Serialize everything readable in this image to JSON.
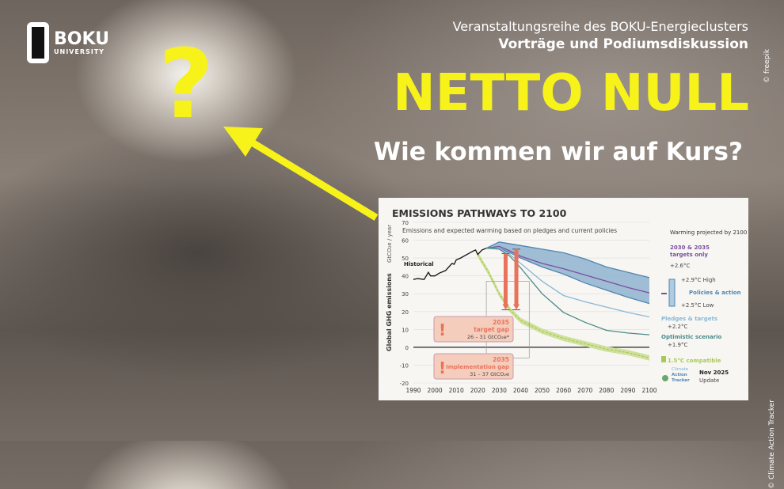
{
  "logo": {
    "name": "BOKU",
    "sub": "UNIVERSITY"
  },
  "question_mark": "?",
  "header": {
    "series": "Veranstaltungsreihe des BOKU-Energieclusters",
    "format": "Vorträge und Podiumsdiskussion",
    "credit": "© freepik"
  },
  "title": "NETTO NULL",
  "tagline": "Wie kommen wir auf Kurs?",
  "chart_credit": "© Climate Action Tracker",
  "colors": {
    "accent_yellow": "#f7f21a",
    "policies": "#4f86b0",
    "targets": "#7b4fa0",
    "pledges": "#8ab8d6",
    "optimistic": "#4a8a8a",
    "compatible": "#a8c85a",
    "gap": "#e8735a"
  },
  "chart_data": {
    "type": "line",
    "title": "EMISSIONS PATHWAYS TO 2100",
    "subtitle": "Emissions and expected warming based on pledges and current policies",
    "ylabel": "Global GHG emissions",
    "yunit": "GtCO₂e / year",
    "xlim": [
      1990,
      2100
    ],
    "ylim": [
      -20,
      70
    ],
    "xticks": [
      "1990",
      "2000",
      "2010",
      "2020",
      "2030",
      "2040",
      "2050",
      "2060",
      "2070",
      "2080",
      "2090",
      "2100"
    ],
    "yticks": [
      "70",
      "60",
      "50",
      "40",
      "30",
      "20",
      "10",
      "0",
      "-10",
      "-20"
    ],
    "grid": true,
    "series": [
      {
        "name": "Historical",
        "x": [
          1990,
          1992,
          1995,
          1997,
          1998,
          2000,
          2002,
          2005,
          2008,
          2009,
          2010,
          2012,
          2015,
          2018,
          2019,
          2020,
          2022,
          2024
        ],
        "y": [
          38,
          38.5,
          38,
          42,
          40,
          40,
          41.5,
          43,
          47,
          46.5,
          49,
          50,
          52,
          54,
          54.5,
          52,
          54.5,
          55.5
        ]
      },
      {
        "name": "Policies & action High",
        "x": [
          2024,
          2030,
          2035,
          2040,
          2050,
          2060,
          2070,
          2080,
          2090,
          2100
        ],
        "y": [
          55.5,
          59,
          58,
          57,
          55,
          53,
          49.5,
          45,
          42,
          39
        ]
      },
      {
        "name": "Policies & action Low",
        "x": [
          2024,
          2030,
          2035,
          2040,
          2050,
          2060,
          2070,
          2080,
          2090,
          2100
        ],
        "y": [
          55.5,
          55.5,
          53,
          50,
          45,
          41,
          36,
          32,
          28,
          24.5
        ]
      },
      {
        "name": "2030 & 2035 targets only",
        "x": [
          2024,
          2030,
          2035,
          2040,
          2050,
          2060,
          2070,
          2080,
          2090,
          2100
        ],
        "y": [
          55.5,
          56.5,
          54,
          51,
          47,
          44,
          40.5,
          37,
          33.5,
          30.5
        ]
      },
      {
        "name": "Pledges & targets",
        "x": [
          2024,
          2030,
          2035,
          2040,
          2050,
          2060,
          2070,
          2080,
          2090,
          2100
        ],
        "y": [
          55.5,
          55.5,
          52,
          47,
          37,
          29,
          25.5,
          22.5,
          19.5,
          17
        ]
      },
      {
        "name": "Optimistic scenario",
        "x": [
          2024,
          2030,
          2035,
          2040,
          2050,
          2060,
          2070,
          2080,
          2090,
          2100
        ],
        "y": [
          55.5,
          55,
          51,
          44.5,
          30,
          19.5,
          14,
          9.5,
          8,
          7
        ]
      },
      {
        "name": "1.5°C compatible",
        "x": [
          2020,
          2025,
          2030,
          2035,
          2040,
          2050,
          2060,
          2070,
          2080,
          2090,
          2100
        ],
        "y": [
          52,
          42,
          30,
          21,
          15,
          9,
          5,
          2,
          -1,
          -3,
          -6
        ]
      }
    ],
    "gaps": [
      {
        "x": 2033,
        "from": 52.5,
        "to": 21
      },
      {
        "x": 2038,
        "from": 55,
        "to": 21
      }
    ],
    "annotations": {
      "historical": "Historical",
      "target_gap": {
        "year": "2035",
        "label": "target gap",
        "value": "26 – 31  GtCO₂e*"
      },
      "implementation_gap": {
        "year": "2035",
        "label": "Implementation gap",
        "value": "31 – 37  GtCO₂e"
      }
    },
    "legend": {
      "heading": "Warming projected by 2100",
      "targets": {
        "label": "2030 & 2035 targets only",
        "value": "+2.6°C"
      },
      "policies": {
        "label": "Policies & action",
        "high": "+2.9°C High",
        "low": "+2.5°C Low"
      },
      "pledges": {
        "label": "Pledges & targets",
        "value": "+2.2°C"
      },
      "optimistic": {
        "label": "Optimistic scenario",
        "value": "+1.9°C"
      },
      "compatible": {
        "label": "1.5°C compatible"
      },
      "brand": [
        "Climate",
        "Action",
        "Tracker"
      ],
      "update_date": "Nov 2025",
      "update": "Update"
    }
  }
}
